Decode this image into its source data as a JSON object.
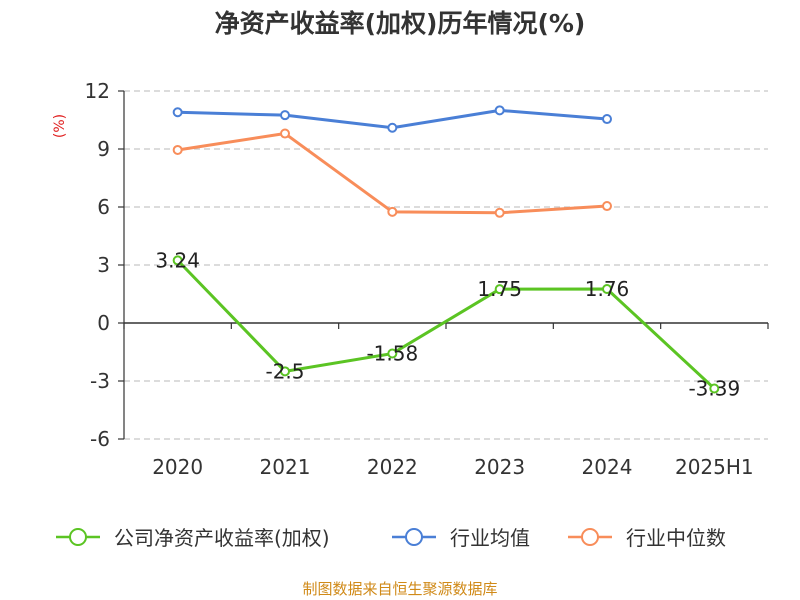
{
  "chart_data": {
    "type": "line",
    "title": "净资产收益率(加权)历年情况(%)",
    "ylabel": "(%)",
    "categories": [
      "2020",
      "2021",
      "2022",
      "2023",
      "2024",
      "2025H1"
    ],
    "ylim": [
      -6,
      12
    ],
    "yticks": [
      "12",
      "9",
      "6",
      "3",
      "0",
      "-3",
      "-6"
    ],
    "ytick_values": [
      12,
      9,
      6,
      3,
      0,
      -3,
      -6
    ],
    "grid": true,
    "legend_position": "bottom",
    "series": [
      {
        "name": "公司净资产收益率(加权)",
        "color": "#5bc423",
        "values": [
          3.24,
          -2.5,
          -1.58,
          1.75,
          1.76,
          -3.39
        ],
        "labels": [
          "3.24",
          "-2.5",
          "-1.58",
          "1.75",
          "1.76",
          "-3.39"
        ]
      },
      {
        "name": "行业均值",
        "color": "#4a7fd6",
        "values": [
          10.9,
          10.75,
          10.1,
          11.0,
          10.55,
          null
        ]
      },
      {
        "name": "行业中位数",
        "color": "#f88d5a",
        "values": [
          8.95,
          9.8,
          5.75,
          5.7,
          6.05,
          null
        ]
      }
    ]
  },
  "source": "制图数据来自恒生聚源数据库"
}
